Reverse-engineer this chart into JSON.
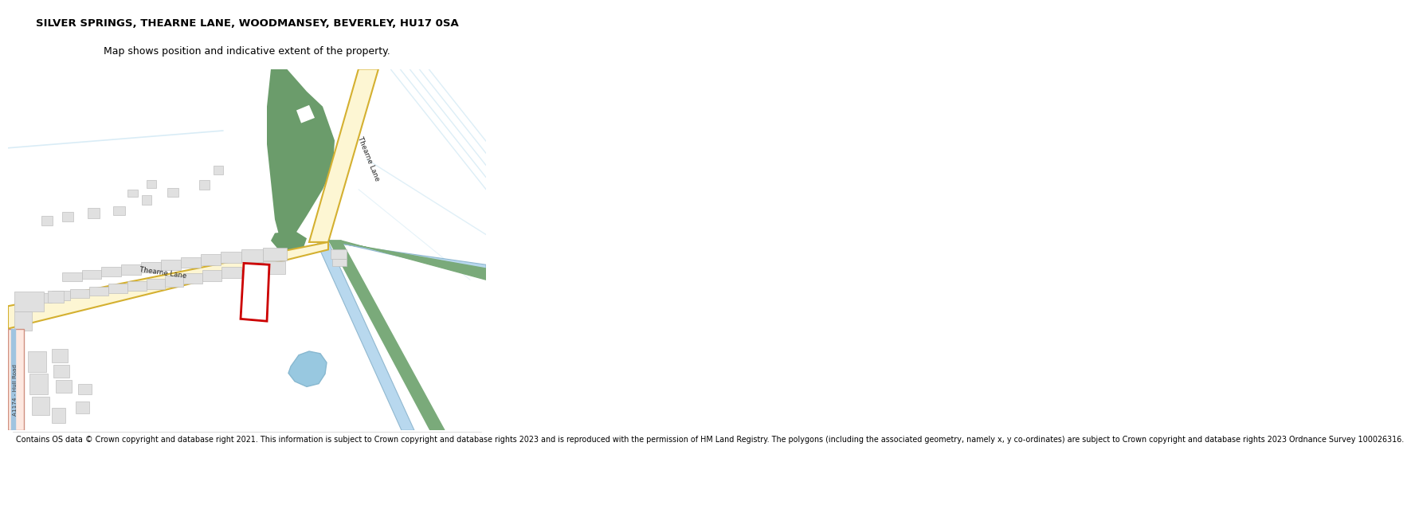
{
  "title_line1": "SILVER SPRINGS, THEARNE LANE, WOODMANSEY, BEVERLEY, HU17 0SA",
  "title_line2": "Map shows position and indicative extent of the property.",
  "footer": "Contains OS data © Crown copyright and database right 2021. This information is subject to Crown copyright and database rights 2023 and is reproduced with the permission of HM Land Registry. The polygons (including the associated geometry, namely x, y co-ordinates) are subject to Crown copyright and database rights 2023 Ordnance Survey 100026316.",
  "map_bg": "#f5f5f2",
  "road_fill": "#fdf6d3",
  "road_border": "#d4b030",
  "road_fill_a": "#fde8e0",
  "road_border_a": "#d09080",
  "green_fill": "#6b9c6b",
  "water_fill": "#a8d4e8",
  "water_line_color": "#88b8d0",
  "building_fill": "#e0e0e0",
  "building_border": "#bfbfbf",
  "green_strip_color": "#7aaa7a",
  "plot_border_color": "#cc0000",
  "canal_color": "#b8d8ee",
  "diag_water_color": "#c0e0f0",
  "pond_fill": "#98c8e0",
  "canal_line": "#90b8d0"
}
